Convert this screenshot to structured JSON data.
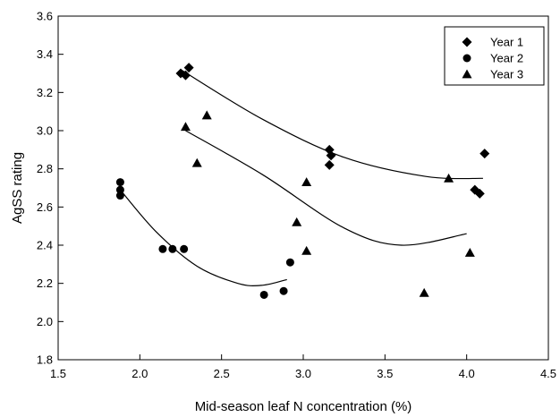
{
  "chart_data": {
    "type": "scatter",
    "title": "",
    "xlabel": "Mid-season leaf N concentration (%)",
    "ylabel": "AgSS rating",
    "xlim": [
      1.5,
      4.5
    ],
    "ylim": [
      1.8,
      3.6
    ],
    "x_ticks": [
      "1.5",
      "2.0",
      "2.5",
      "3.0",
      "3.5",
      "4.0",
      "4.5"
    ],
    "y_ticks": [
      "1.8",
      "2.0",
      "2.2",
      "2.4",
      "2.6",
      "2.8",
      "3.0",
      "3.2",
      "3.4",
      "3.6"
    ],
    "grid": false,
    "legend_position": "top-right",
    "series": [
      {
        "name": "Year 1",
        "marker": "diamond",
        "color": "#000000",
        "points": [
          [
            2.25,
            3.3
          ],
          [
            2.28,
            3.29
          ],
          [
            2.3,
            3.33
          ],
          [
            3.16,
            2.9
          ],
          [
            3.17,
            2.87
          ],
          [
            3.16,
            2.82
          ],
          [
            4.05,
            2.69
          ],
          [
            4.08,
            2.67
          ],
          [
            4.11,
            2.88
          ]
        ],
        "trend": [
          [
            2.25,
            3.32
          ],
          [
            2.75,
            3.06
          ],
          [
            3.25,
            2.86
          ],
          [
            3.75,
            2.76
          ],
          [
            4.1,
            2.75
          ]
        ]
      },
      {
        "name": "Year 2",
        "marker": "circle",
        "color": "#000000",
        "points": [
          [
            1.88,
            2.66
          ],
          [
            1.88,
            2.69
          ],
          [
            1.88,
            2.73
          ],
          [
            2.14,
            2.38
          ],
          [
            2.2,
            2.38
          ],
          [
            2.27,
            2.38
          ],
          [
            2.76,
            2.14
          ],
          [
            2.88,
            2.16
          ],
          [
            2.92,
            2.31
          ]
        ],
        "trend": [
          [
            1.88,
            2.69
          ],
          [
            2.1,
            2.47
          ],
          [
            2.35,
            2.29
          ],
          [
            2.6,
            2.2
          ],
          [
            2.75,
            2.19
          ],
          [
            2.9,
            2.22
          ]
        ]
      },
      {
        "name": "Year 3",
        "marker": "triangle",
        "color": "#000000",
        "points": [
          [
            2.28,
            3.02
          ],
          [
            2.35,
            2.83
          ],
          [
            2.41,
            3.08
          ],
          [
            2.96,
            2.52
          ],
          [
            3.02,
            2.73
          ],
          [
            3.02,
            2.37
          ],
          [
            3.74,
            2.15
          ],
          [
            3.89,
            2.75
          ],
          [
            4.02,
            2.36
          ]
        ],
        "trend": [
          [
            2.28,
            3.0
          ],
          [
            2.75,
            2.77
          ],
          [
            3.25,
            2.49
          ],
          [
            3.6,
            2.4
          ],
          [
            4.0,
            2.46
          ]
        ]
      }
    ]
  }
}
